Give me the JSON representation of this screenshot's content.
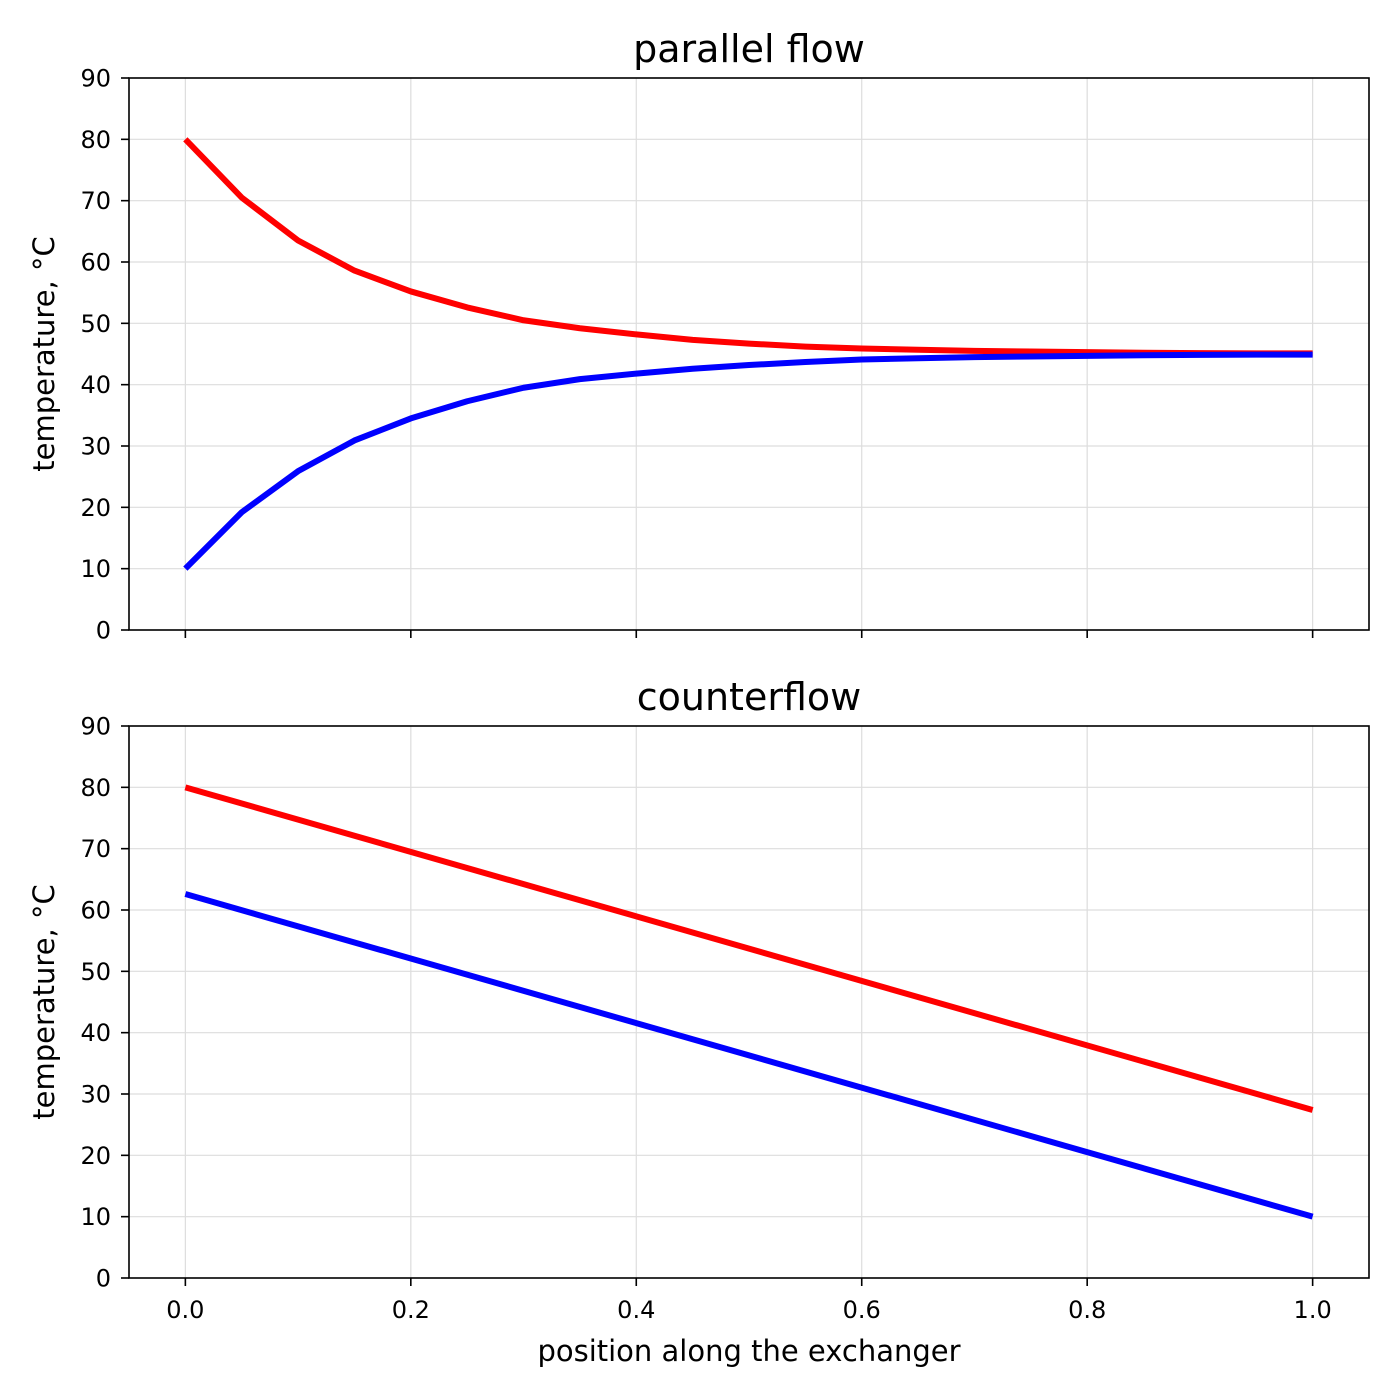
{
  "chart_data": [
    {
      "type": "line",
      "title": "parallel flow",
      "xlabel": "",
      "ylabel": "temperature, °C",
      "xlim": [
        -0.05,
        1.05
      ],
      "ylim": [
        0,
        90
      ],
      "xticks": [
        0.0,
        0.2,
        0.4,
        0.6,
        0.8,
        1.0
      ],
      "xtick_labels_shown": false,
      "yticks": [
        0,
        10,
        20,
        30,
        40,
        50,
        60,
        70,
        80,
        90
      ],
      "ytick_labels": [
        "0",
        "10",
        "20",
        "30",
        "40",
        "50",
        "60",
        "70",
        "80",
        "90"
      ],
      "grid": true,
      "x": [
        0.0,
        0.05,
        0.1,
        0.15,
        0.2,
        0.25,
        0.3,
        0.35,
        0.4,
        0.45,
        0.5,
        0.55,
        0.6,
        0.65,
        0.7,
        0.75,
        0.8,
        0.85,
        0.9,
        0.95,
        1.0
      ],
      "series": [
        {
          "color": "#ff0000",
          "values": [
            80.0,
            70.5,
            63.5,
            58.6,
            55.2,
            52.6,
            50.5,
            49.2,
            48.2,
            47.3,
            46.7,
            46.2,
            45.9,
            45.7,
            45.5,
            45.4,
            45.3,
            45.2,
            45.15,
            45.1,
            45.1
          ]
        },
        {
          "color": "#0000ff",
          "values": [
            10.0,
            19.2,
            25.9,
            30.9,
            34.5,
            37.3,
            39.5,
            40.9,
            41.8,
            42.6,
            43.2,
            43.7,
            44.1,
            44.3,
            44.5,
            44.6,
            44.7,
            44.8,
            44.85,
            44.9,
            44.9
          ]
        }
      ]
    },
    {
      "type": "line",
      "title": "counterflow",
      "xlabel": "position along the exchanger",
      "ylabel": "temperature, °C",
      "xlim": [
        -0.05,
        1.05
      ],
      "ylim": [
        0,
        90
      ],
      "xticks": [
        0.0,
        0.2,
        0.4,
        0.6,
        0.8,
        1.0
      ],
      "xtick_labels": [
        "0.0",
        "0.2",
        "0.4",
        "0.6",
        "0.8",
        "1.0"
      ],
      "yticks": [
        0,
        10,
        20,
        30,
        40,
        50,
        60,
        70,
        80,
        90
      ],
      "ytick_labels": [
        "0",
        "10",
        "20",
        "30",
        "40",
        "50",
        "60",
        "70",
        "80",
        "90"
      ],
      "grid": true,
      "x": [
        0.0,
        1.0
      ],
      "series": [
        {
          "color": "#ff0000",
          "values": [
            80.0,
            27.4
          ]
        },
        {
          "color": "#0000ff",
          "values": [
            62.6,
            10.0
          ]
        }
      ]
    }
  ]
}
